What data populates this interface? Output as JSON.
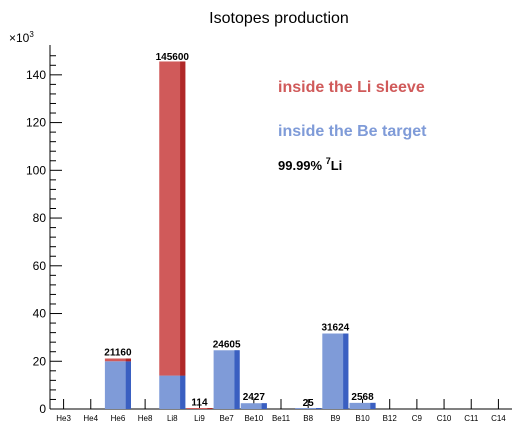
{
  "chart_data": {
    "type": "bar",
    "title": "Isotopes production",
    "axis_multiplier": "×10",
    "axis_multiplier_exp": "3",
    "categories": [
      "He3",
      "He4",
      "He6",
      "He8",
      "Li8",
      "Li9",
      "Be7",
      "Be10",
      "Be11",
      "B8",
      "B9",
      "B10",
      "B12",
      "C9",
      "C10",
      "C11",
      "C14"
    ],
    "series": [
      {
        "name": "inside the Li sleeve",
        "color": "#d05a5a",
        "values": [
          0,
          0,
          21160,
          0,
          145600,
          114,
          0,
          0,
          0,
          0,
          0,
          0,
          0,
          0,
          0,
          0,
          0
        ]
      },
      {
        "name": "inside the Be target",
        "color": "#7f9bd8",
        "values": [
          0,
          0,
          20000,
          0,
          14000,
          0,
          24605,
          2427,
          0,
          25,
          31624,
          2568,
          0,
          0,
          0,
          0,
          0
        ]
      }
    ],
    "data_labels": [
      {
        "category": "He6",
        "text": "21160"
      },
      {
        "category": "Li8",
        "text": "145600"
      },
      {
        "category": "Li9",
        "text": "114"
      },
      {
        "category": "Be7",
        "text": "24605"
      },
      {
        "category": "Be10",
        "text": "2427"
      },
      {
        "category": "B8",
        "text": "25"
      },
      {
        "category": "B9",
        "text": "31624"
      },
      {
        "category": "B10",
        "text": "2568"
      }
    ],
    "yticks": [
      0,
      20,
      40,
      60,
      80,
      100,
      120,
      140
    ],
    "ylim": [
      0,
      152500
    ],
    "grid": false,
    "legend_placement": "top-right",
    "note": {
      "prefix": "99.99% ",
      "sup": "7",
      "suffix": "Li"
    }
  }
}
